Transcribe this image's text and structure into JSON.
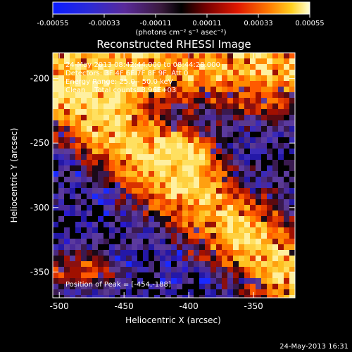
{
  "chart_data": {
    "type": "heatmap",
    "title": "Reconstructed RHESSI Image",
    "xlabel": "Heliocentric X (arcsec)",
    "ylabel": "Heliocentric Y (arcsec)",
    "xlim": [
      -505,
      -318
    ],
    "ylim": [
      -370,
      -180
    ],
    "x_ticks": [
      -500,
      -450,
      -400,
      -350
    ],
    "x_tick_labels": [
      "-500",
      "-450",
      "-400",
      "-350"
    ],
    "y_ticks": [
      -200,
      -250,
      -300,
      -350
    ],
    "y_tick_labels": [
      "-200",
      "-250",
      "-300",
      "-350"
    ],
    "colorbar": {
      "range": [
        -0.00055,
        0.00055
      ],
      "ticks": [
        -0.00055,
        -0.00033,
        -0.00011,
        0.00011,
        0.00033,
        0.00055
      ],
      "tick_labels": [
        "-0.00055",
        "-0.00033",
        "-0.00011",
        "0.00011",
        "0.00033",
        "0.00055"
      ],
      "unit_label": "(photons cm⁻² s⁻¹ asec⁻²)"
    },
    "info_lines": [
      "24-May-2013 08:42:44.000 to 08:44:28.000",
      "Detectors: 3F 4F 6F 7F 8F 9F, Att 0",
      "Energy Range: 25.0 - 50.0 keV",
      "Clean    Total counts: 3.96E+03"
    ],
    "peak_label": "Position of Peak = [-454,-188]",
    "peak_position": [
      -454,
      -188
    ],
    "footer_timestamp": "24-May-2013 16:31",
    "grid": false
  }
}
